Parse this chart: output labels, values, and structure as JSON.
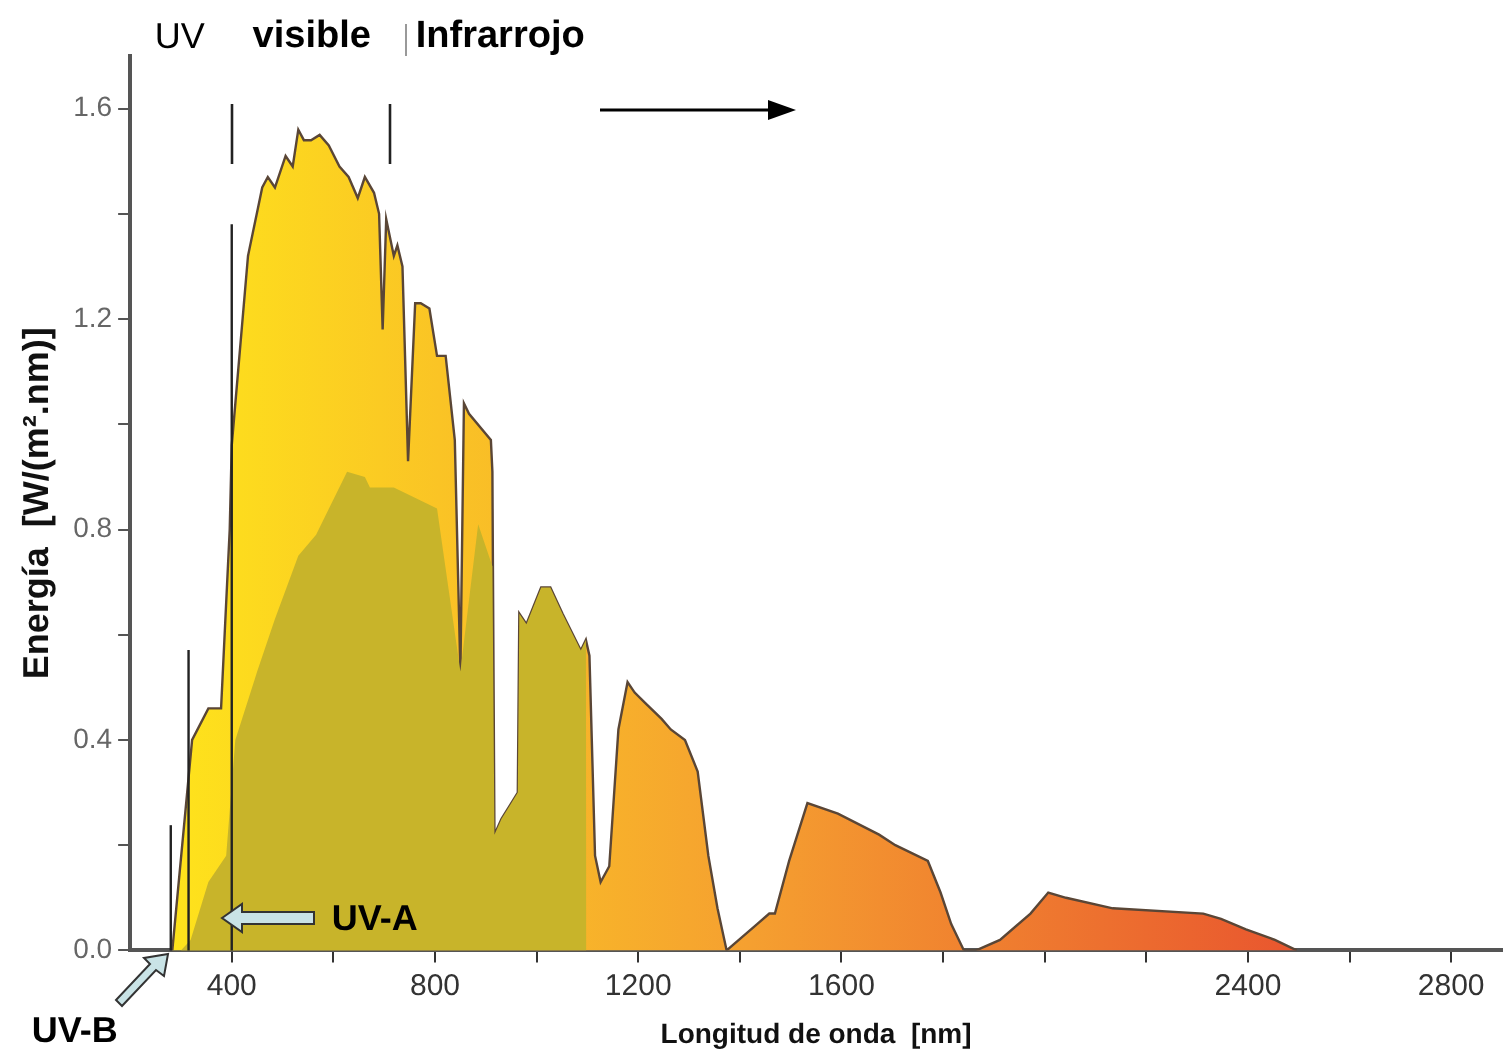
{
  "chart_data": {
    "type": "area",
    "xlabel": "Longitud de onda  [nm]",
    "ylabel": "Energía  [W/(m².nm)]",
    "xlim": [
      200,
      2900
    ],
    "ylim": [
      0,
      1.7
    ],
    "xticks": [
      400,
      {
        "value": 600,
        "label": null
      },
      800,
      {
        "value": 1000,
        "label": null
      },
      1200,
      {
        "value": 1400,
        "label": null
      },
      1600,
      {
        "value": 1800,
        "label": null
      },
      {
        "value": 2000,
        "label": null
      },
      {
        "value": 2200,
        "label": null
      },
      2400,
      {
        "value": 2600,
        "label": null
      },
      2800
    ],
    "yticks": [
      {
        "value": 0,
        "label": "0.0"
      },
      {
        "value": 0.2,
        "label": null
      },
      0.4,
      {
        "value": 0.6,
        "label": null
      },
      0.8,
      {
        "value": 1,
        "label": null
      },
      1.2,
      {
        "value": 1.4,
        "label": null
      },
      1.6
    ],
    "grid": false,
    "legend": false,
    "series": [
      {
        "color": "#f5a030",
        "x": [
          283,
          322,
          354,
          379,
          396,
          400,
          432,
          460,
          471,
          485,
          506,
          520,
          531,
          542,
          556,
          573,
          591,
          612,
          630,
          648,
          662,
          680,
          690,
          697,
          704,
          719,
          726,
          736,
          747,
          761,
          772,
          789,
          804,
          821,
          839,
          850,
          857,
          867,
          910,
          913,
          917,
          931,
          963,
          966,
          980,
          1009,
          1027,
          1051,
          1087,
          1097,
          1104,
          1115,
          1126,
          1143,
          1161,
          1179,
          1193,
          1214,
          1246,
          1264,
          1292,
          1317,
          1338,
          1356,
          1374,
          1398,
          1434,
          1458,
          1469,
          1497,
          1533,
          1593,
          1674,
          1706,
          1770,
          1795,
          1816,
          1841,
          1865,
          1912,
          1972,
          2007,
          2042,
          2134,
          2312,
          2347,
          2396,
          2453,
          2496
        ],
        "values": [
          0,
          0.4,
          0.46,
          0.46,
          0.8,
          0.96,
          1.32,
          1.45,
          1.47,
          1.45,
          1.51,
          1.49,
          1.56,
          1.54,
          1.54,
          1.55,
          1.53,
          1.49,
          1.47,
          1.43,
          1.47,
          1.44,
          1.4,
          1.18,
          1.39,
          1.32,
          1.34,
          1.3,
          0.93,
          1.23,
          1.23,
          1.22,
          1.13,
          1.13,
          0.97,
          0.53,
          1.04,
          1.02,
          0.97,
          0.91,
          0.22,
          0.25,
          0.3,
          0.64,
          0.62,
          0.69,
          0.69,
          0.64,
          0.57,
          0.59,
          0.56,
          0.18,
          0.13,
          0.16,
          0.42,
          0.51,
          0.49,
          0.47,
          0.44,
          0.42,
          0.4,
          0.34,
          0.18,
          0.08,
          0,
          0.02,
          0.05,
          0.07,
          0.07,
          0.17,
          0.28,
          0.26,
          0.22,
          0.2,
          0.17,
          0.11,
          0.05,
          0,
          0,
          0.02,
          0.07,
          0.11,
          0.1,
          0.08,
          0.07,
          0.06,
          0.04,
          0.02,
          0
        ]
      },
      {
        "color": "#c8b42a",
        "x": [
          300,
          319,
          354,
          389,
          407,
          450,
          485,
          531,
          566,
          627,
          662,
          672,
          719,
          804,
          850,
          885,
          913,
          917,
          931,
          963,
          966,
          980,
          1009,
          1027,
          1051,
          1087,
          1097,
          1098
        ],
        "values": [
          0,
          0.02,
          0.13,
          0.18,
          0.4,
          0.53,
          0.63,
          0.75,
          0.79,
          0.91,
          0.9,
          0.88,
          0.88,
          0.84,
          0.53,
          0.81,
          0.73,
          0.22,
          0.25,
          0.3,
          0.64,
          0.62,
          0.69,
          0.69,
          0.64,
          0.57,
          0.59,
          0
        ]
      }
    ],
    "ref_lines": [
      {
        "axis": "x",
        "value": 280,
        "color": "#222222"
      },
      {
        "axis": "x",
        "value": 315,
        "color": "#222222"
      },
      {
        "axis": "x",
        "value": 400,
        "color": "#222222"
      }
    ],
    "annotations": [
      "UV",
      "visible",
      "Infrarrojo",
      "UV-A",
      {
        "text": "UV-B",
        "x": 280,
        "y": 0
      }
    ]
  }
}
